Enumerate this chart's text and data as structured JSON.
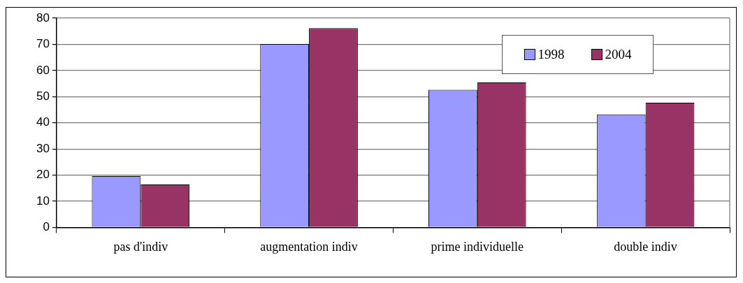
{
  "chart_data": {
    "type": "bar",
    "categories": [
      "pas d'indiv",
      "augmentation indiv",
      "prime individuelle",
      "double indiv"
    ],
    "series": [
      {
        "name": "1998",
        "color": "#9999ff",
        "values": [
          19.6,
          70.1,
          52.6,
          43.2
        ]
      },
      {
        "name": "2004",
        "color": "#993366",
        "values": [
          16.4,
          76.2,
          55.4,
          47.7
        ]
      }
    ],
    "ylim": [
      0,
      80
    ],
    "yticks": [
      0,
      10,
      20,
      30,
      40,
      50,
      60,
      70,
      80
    ],
    "grid": "y",
    "legend": "top right"
  }
}
